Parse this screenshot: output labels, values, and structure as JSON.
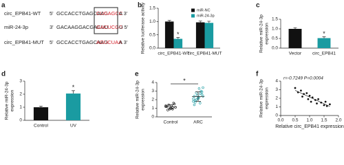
{
  "sequences": {
    "label": "a",
    "rows": [
      {
        "name": "circ_EPB41-WT",
        "end_left": "5'",
        "seq": "GCCACCTGAGCAAG",
        "site": "CUGAGCC",
        "end_right": "A 3'"
      },
      {
        "name": "miR-24-3p",
        "end_left": "3'",
        "seq": "GACAAGGACGACUU",
        "site": "GACUCGG",
        "end_right": "U 5'"
      },
      {
        "name": "circ_EPB41-MUT",
        "end_left": "5'",
        "seq": "GCCACCTGAGCAAG",
        "site": "AGUCUAA",
        "end_right": "A 3'"
      }
    ]
  },
  "chart_data": [
    {
      "type": "bar",
      "label": "b",
      "ylabel": [
        "Relative luciferase activity"
      ],
      "categories": [
        "circ_EPB41-WT",
        "circ_EPB41-MUT"
      ],
      "series": [
        {
          "name": "miR-NC",
          "color": "#111111",
          "values": [
            1.0,
            0.97
          ],
          "errors": [
            0.04,
            0.05
          ]
        },
        {
          "name": "miR-24-3p",
          "color": "#1a9ba1",
          "values": [
            0.35,
            0.95
          ],
          "errors": [
            0.05,
            0.06
          ]
        }
      ],
      "ylim": [
        0,
        1.5
      ],
      "yticks": [
        {
          "value": 0,
          "label": "0.0"
        },
        {
          "value": 0.5,
          "label": "0.5"
        },
        {
          "value": 1,
          "label": "1.0"
        },
        {
          "value": 1.5,
          "label": "1.5"
        }
      ],
      "significance": {
        "label": "*",
        "series": 1,
        "category": 0
      }
    },
    {
      "type": "bar",
      "label": "c",
      "ylabel": [
        "Relative miR-24-3p",
        "expression"
      ],
      "categories": [
        "Vector",
        "circ_EPB41"
      ],
      "values": [
        1.0,
        0.52
      ],
      "errors": [
        0.06,
        0.07
      ],
      "colors": [
        "#111111",
        "#1a9ba1"
      ],
      "ylim": [
        0,
        1.5
      ],
      "yticks": [
        {
          "value": 0,
          "label": "0.0"
        },
        {
          "value": 0.5,
          "label": "0.5"
        },
        {
          "value": 1,
          "label": "1.0"
        },
        {
          "value": 1.5,
          "label": "1.5"
        }
      ],
      "significance": {
        "label": "*",
        "category": 1
      }
    },
    {
      "type": "bar",
      "label": "d",
      "ylabel": [
        "Relative miR-24-3p",
        "expression"
      ],
      "categories": [
        "Control",
        "UV"
      ],
      "values": [
        1.0,
        2.05
      ],
      "errors": [
        0.08,
        0.22
      ],
      "colors": [
        "#111111",
        "#1a9ba1"
      ],
      "ylim": [
        0,
        3
      ],
      "yticks": [
        0,
        1,
        2,
        3
      ],
      "significance": {
        "label": "*",
        "category": 1
      }
    },
    {
      "type": "strip",
      "label": "e",
      "ylabel": [
        "Relative miR-24-3p",
        "expression"
      ],
      "categories": [
        "Control",
        "ARC"
      ],
      "colors": [
        "#111111",
        "#1a9ba1"
      ],
      "values": [
        [
          1.2,
          0.9,
          1.4,
          1.1,
          1.3,
          0.8,
          1.5,
          1.0,
          1.2,
          1.6,
          0.9,
          1.3,
          1.1
        ],
        [
          2.1,
          1.6,
          2.8,
          2.4,
          3.3,
          1.9,
          2.6,
          2.2,
          1.4,
          3.0,
          2.5,
          1.8,
          2.7,
          2.0,
          3.4,
          2.3,
          1.7,
          2.9,
          2.1,
          2.4
        ]
      ],
      "means": [
        1.17,
        2.36
      ],
      "sds": [
        0.24,
        0.55
      ],
      "ylim": [
        0,
        4
      ],
      "yticks": [
        0,
        1,
        2,
        3,
        4
      ],
      "significance": {
        "label": "*"
      }
    },
    {
      "type": "scatter",
      "label": "f",
      "ylabel": [
        "Relative miR-24-3p",
        "expression"
      ],
      "xlabel": "Relative circ_EPB41 expression",
      "annotation": "r=-0.7249 P=0.0004",
      "color": "#111111",
      "x": [
        0.5,
        0.6,
        0.7,
        0.75,
        0.8,
        0.9,
        0.95,
        1.0,
        1.05,
        1.1,
        1.2,
        1.25,
        1.3,
        1.4,
        1.5,
        1.55,
        1.6,
        1.7
      ],
      "y": [
        3.2,
        2.7,
        2.9,
        2.2,
        2.5,
        2.6,
        1.9,
        2.3,
        1.6,
        2.1,
        1.8,
        1.4,
        1.9,
        1.5,
        1.2,
        1.6,
        1.1,
        1.3
      ],
      "xlim": [
        0,
        2
      ],
      "xticks": [
        {
          "value": 0,
          "label": "0.0"
        },
        {
          "value": 0.5,
          "label": "0.5"
        },
        {
          "value": 1,
          "label": "1.0"
        },
        {
          "value": 1.5,
          "label": "1.5"
        },
        {
          "value": 2,
          "label": "2.0"
        }
      ],
      "ylim": [
        0,
        4
      ],
      "yticks": [
        0,
        1,
        2,
        3,
        4
      ]
    }
  ]
}
